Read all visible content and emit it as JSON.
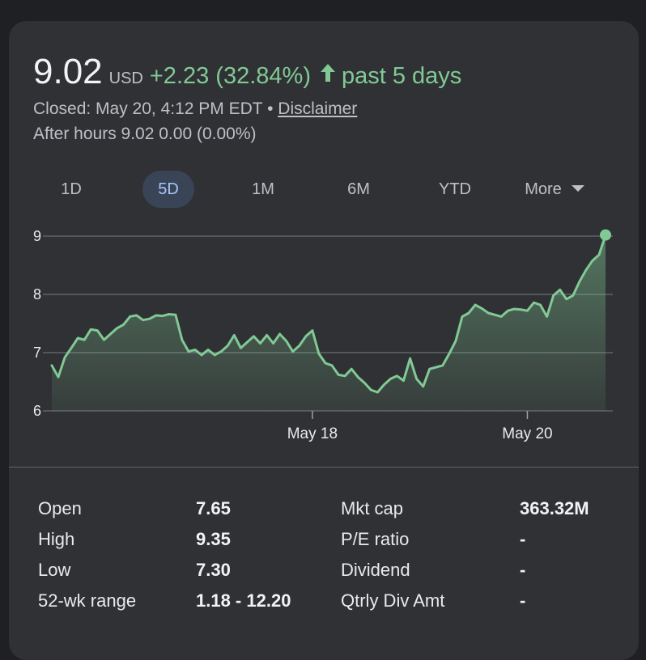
{
  "quote": {
    "price": "9.02",
    "currency": "USD",
    "change": "+2.23 (32.84%)",
    "period": "past 5 days",
    "closed_text": "Closed: May 20, 4:12 PM EDT",
    "separator": "•",
    "disclaimer": "Disclaimer",
    "after_hours": "After hours 9.02 0.00 (0.00%)",
    "up_color": "#81c995"
  },
  "tabs": [
    {
      "label": "1D"
    },
    {
      "label": "5D",
      "active": true
    },
    {
      "label": "1M"
    },
    {
      "label": "6M"
    },
    {
      "label": "YTD"
    },
    {
      "label": "More"
    }
  ],
  "chart_data": {
    "type": "area",
    "ylim": [
      6,
      9
    ],
    "yticks": [
      "9",
      "8",
      "7",
      "6"
    ],
    "xticks": [
      {
        "label": "May 18",
        "x": 40
      },
      {
        "label": "May 20",
        "x": 73
      }
    ],
    "x": [
      0,
      1,
      2,
      3,
      4,
      5,
      6,
      7,
      8,
      9,
      10,
      11,
      12,
      13,
      14,
      15,
      16,
      17,
      18,
      19,
      20,
      21,
      22,
      23,
      24,
      25,
      26,
      27,
      28,
      29,
      30,
      31,
      32,
      33,
      34,
      35,
      36,
      37,
      38,
      39,
      40,
      41,
      42,
      43,
      44,
      45,
      46,
      47,
      48,
      49,
      50,
      51,
      52,
      53,
      54,
      55,
      56,
      57,
      58,
      59,
      60,
      61,
      62,
      63,
      64,
      65,
      66,
      67,
      68,
      69,
      70,
      71,
      72,
      73,
      74,
      75,
      76,
      77,
      78,
      79,
      80,
      81,
      82,
      83,
      84,
      85
    ],
    "values": [
      6.78,
      6.58,
      6.92,
      7.08,
      7.25,
      7.22,
      7.4,
      7.38,
      7.22,
      7.32,
      7.42,
      7.48,
      7.62,
      7.64,
      7.56,
      7.58,
      7.64,
      7.63,
      7.66,
      7.65,
      7.22,
      7.02,
      7.05,
      6.96,
      7.05,
      6.96,
      7.02,
      7.12,
      7.3,
      7.08,
      7.18,
      7.28,
      7.16,
      7.3,
      7.16,
      7.32,
      7.2,
      7.02,
      7.12,
      7.28,
      7.38,
      6.98,
      6.82,
      6.78,
      6.62,
      6.6,
      6.72,
      6.58,
      6.48,
      6.36,
      6.32,
      6.45,
      6.55,
      6.6,
      6.52,
      6.9,
      6.55,
      6.42,
      6.72,
      6.75,
      6.78,
      6.98,
      7.2,
      7.62,
      7.68,
      7.82,
      7.76,
      7.68,
      7.65,
      7.62,
      7.72,
      7.75,
      7.74,
      7.72,
      7.86,
      7.82,
      7.62,
      7.98,
      8.08,
      7.92,
      7.98,
      8.22,
      8.42,
      8.58,
      8.68,
      9.02
    ]
  },
  "stats": {
    "left": [
      {
        "label": "Open",
        "value": "7.65"
      },
      {
        "label": "High",
        "value": "9.35"
      },
      {
        "label": "Low",
        "value": "7.30"
      },
      {
        "label": "52-wk range",
        "value": "1.18 - 12.20"
      }
    ],
    "right": [
      {
        "label": "Mkt cap",
        "value": "363.32M"
      },
      {
        "label": "P/E ratio",
        "value": "-"
      },
      {
        "label": "Dividend",
        "value": "-"
      },
      {
        "label": "Qtrly Div Amt",
        "value": "-"
      }
    ]
  }
}
